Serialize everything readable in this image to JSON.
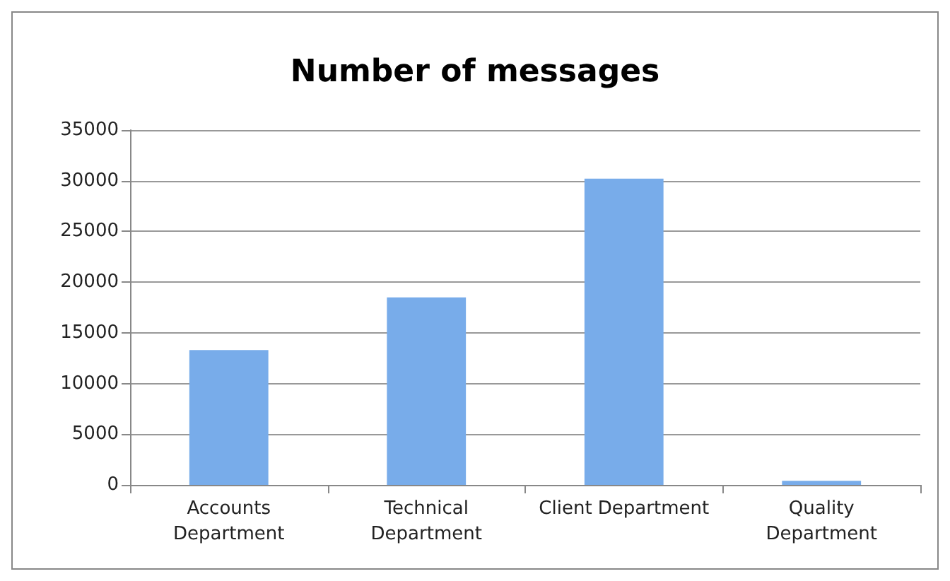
{
  "chart_data": {
    "type": "bar",
    "title": "Number of messages",
    "categories": [
      "Accounts Department",
      "Technical Department",
      "Client Department",
      "Quality Department"
    ],
    "values": [
      13300,
      18500,
      30200,
      400
    ],
    "color": "#78acea",
    "ylim": [
      0,
      35000
    ],
    "yticks": [
      0,
      5000,
      10000,
      15000,
      20000,
      25000,
      30000,
      35000
    ],
    "grid": "y"
  }
}
